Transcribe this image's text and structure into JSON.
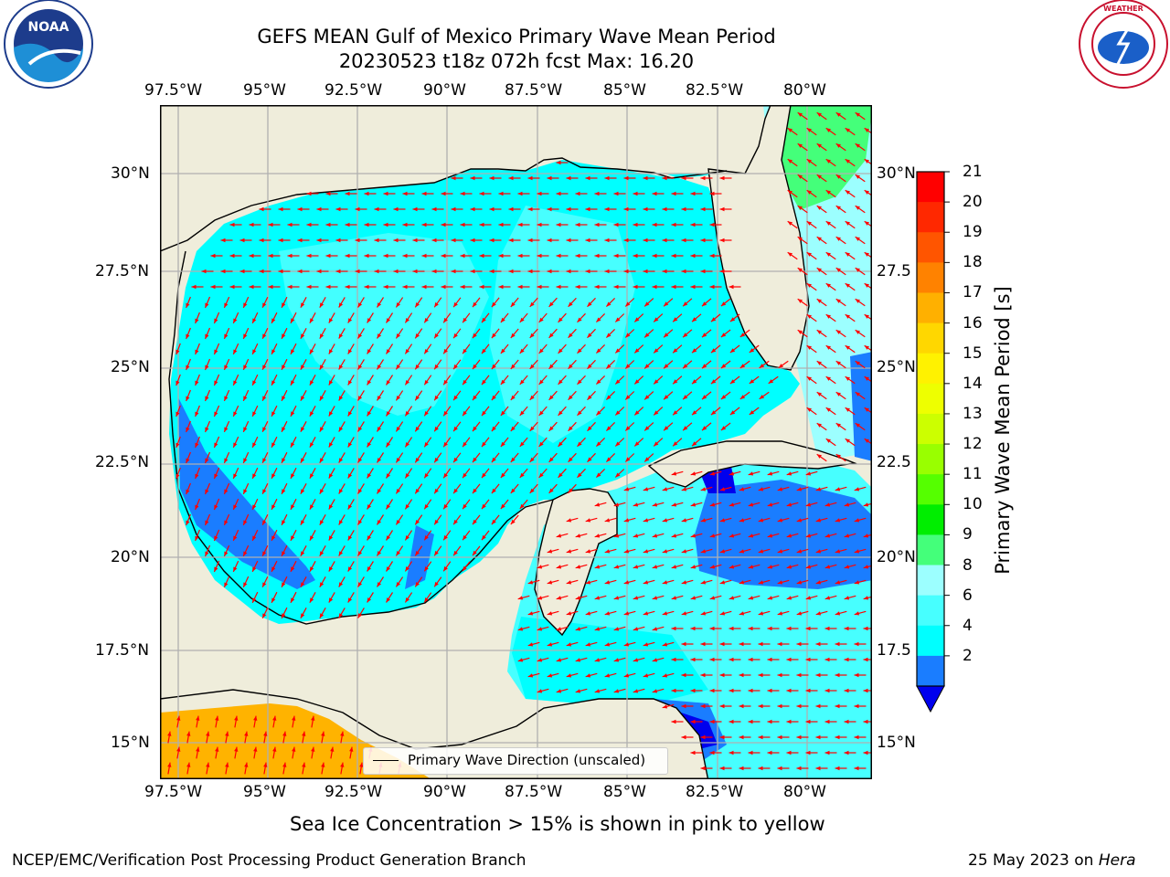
{
  "title": {
    "line1": "GEFS MEAN Gulf of Mexico Primary Wave Mean Period",
    "line2": "20230523 t18z 072h fcst   Max: 16.20"
  },
  "logos": {
    "left": "NOAA",
    "right": "NATIONAL WEATHER SERVICE"
  },
  "map": {
    "lon_ticks": [
      "97.5°W",
      "95°W",
      "92.5°W",
      "90°W",
      "87.5°W",
      "85°W",
      "82.5°W",
      "80°W"
    ],
    "lat_ticks": [
      "30°N",
      "27.5°N",
      "25°N",
      "22.5°N",
      "20°N",
      "17.5°N",
      "15°N"
    ],
    "lat_ticks_right": [
      "30°N",
      "27.5",
      "25°N",
      "22.5",
      "20°N",
      "17.5",
      "15°N"
    ],
    "lon_range": [
      -98,
      -78.25
    ],
    "lat_range": [
      14,
      31.75
    ],
    "colors": {
      "land": "#efeddb",
      "period_2_4": "#1a7dff",
      "period_0_2": "#0000ee",
      "period_4_6": "#00ffff",
      "period_6_8": "#47ffff",
      "period_8_9": "#9cffff",
      "period_9_10": "#44ff7a",
      "period_16_17": "#ffb300",
      "arrow": "#ff0000",
      "grid": "#b0b0b0"
    }
  },
  "legend": {
    "label": "Primary Wave Direction (unscaled)"
  },
  "colorbar": {
    "label": "Primary Wave Mean Period [s]",
    "ticks": [
      "21",
      "20",
      "19",
      "18",
      "17",
      "16",
      "15",
      "14",
      "13",
      "12",
      "11",
      "10",
      "9",
      "8",
      "6",
      "4",
      "2"
    ],
    "colors": [
      "#ff0000",
      "#ff2800",
      "#ff5500",
      "#ff8200",
      "#ffb000",
      "#ffd700",
      "#fff200",
      "#eeff00",
      "#ccff00",
      "#99ff00",
      "#55ff00",
      "#00ee00",
      "#44ff7a",
      "#9cffff",
      "#47ffff",
      "#00ffff",
      "#1a7dff"
    ],
    "under_color": "#0000ee"
  },
  "sea_ice_note": "Sea Ice Concentration > 15% is shown in pink to yellow",
  "footer": {
    "left": "NCEP/EMC/Verification Post Processing Product Generation Branch",
    "right_prefix": "25 May 2023 on ",
    "right_host": "Hera"
  }
}
